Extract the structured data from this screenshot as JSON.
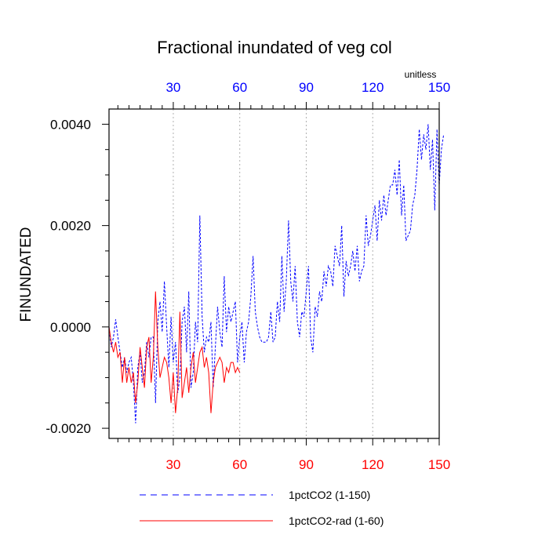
{
  "chart_data": {
    "type": "line",
    "title": "Fractional inundated of veg col",
    "units_label": "unitless",
    "ylabel": "FINUNDATED",
    "xlim": [
      1,
      150
    ],
    "ylim": [
      -0.0022,
      0.0043
    ],
    "x_ticks": [
      "30",
      "60",
      "90",
      "120",
      "150"
    ],
    "x_tick_values": [
      30,
      60,
      90,
      120,
      150
    ],
    "y_ticks": [
      "-0.0020",
      "0.0000",
      "0.0020",
      "0.0040"
    ],
    "y_tick_values": [
      -0.002,
      0.0,
      0.002,
      0.004
    ],
    "grid": "vertical dashed at major x ticks",
    "legend_position": "bottom",
    "colors": {
      "top_axis_labels": "#0000ff",
      "bottom_axis_labels": "#ff0000",
      "series_1": "#0000ff",
      "series_2": "#ff0000",
      "grid": "#b0b0b0"
    },
    "series": [
      {
        "name": "1pctCO2 (1-150)",
        "style": "dashed",
        "x_start": 1,
        "values": [
          0.0,
          -0.0004,
          -0.0002,
          0.00015,
          -0.0002,
          -0.0005,
          -0.0008,
          -0.0006,
          -0.0009,
          -0.0007,
          -0.0006,
          -0.0011,
          -0.0019,
          -0.0008,
          -0.0005,
          -0.0011,
          -0.0009,
          -0.0003,
          -0.0006,
          -0.0002,
          -0.0002,
          -0.0015,
          0.0001,
          0.0005,
          -0.0001,
          0.0009,
          0.0,
          -0.0008,
          0.0002,
          -0.0007,
          -0.0003,
          -0.0013,
          -0.001,
          0.0001,
          0.0004,
          -0.0005,
          0.0007,
          -0.0012,
          -0.0009,
          0.0001,
          -0.0003,
          0.0022,
          0.0002,
          -0.0005,
          -0.0002,
          -0.0003,
          0.0001,
          -0.0012,
          -0.0004,
          0.0004,
          -0.0001,
          -0.0004,
          0.001,
          -0.0001,
          0.0004,
          0.0001,
          0.0003,
          0.0005,
          -0.0007,
          -0.0002,
          0.0001,
          -0.0007,
          -0.0001,
          0.0001,
          0.0006,
          0.0014,
          0.0003,
          0.0,
          -0.0002,
          -0.0003,
          -0.0003,
          -0.0003,
          -0.0002,
          0.0003,
          -0.0003,
          -0.0002,
          0.0005,
          0.0001,
          0.0014,
          0.0003,
          0.0009,
          0.0021,
          0.0009,
          0.0005,
          0.0012,
          0.0001,
          -0.0002,
          0.0003,
          0.0002,
          0.0007,
          0.0012,
          -0.0002,
          -0.0005,
          0.0004,
          0.0002,
          0.0007,
          0.0005,
          0.0011,
          0.0008,
          0.0012,
          0.0011,
          0.0008,
          0.0016,
          0.0014,
          0.0012,
          0.002,
          0.0006,
          0.0013,
          0.001,
          0.0012,
          0.0015,
          0.0011,
          0.0016,
          0.0009,
          0.0011,
          0.0012,
          0.0022,
          0.0016,
          0.0018,
          0.0021,
          0.0024,
          0.0017,
          0.0025,
          0.0021,
          0.0026,
          0.0022,
          0.0025,
          0.0028,
          0.0028,
          0.0031,
          0.0026,
          0.0033,
          0.0022,
          0.0028,
          0.0017,
          0.0018,
          0.0019,
          0.0024,
          0.0026,
          0.0031,
          0.0039,
          0.0033,
          0.0038,
          0.0035,
          0.004,
          0.0031,
          0.0037,
          0.0023,
          0.0039,
          0.0028,
          0.0035,
          0.0038
        ]
      },
      {
        "name": "1pctCO2-rad (1-60)",
        "style": "solid",
        "x_start": 1,
        "values": [
          0.0,
          -0.0003,
          -0.0005,
          -0.0003,
          -0.0006,
          -0.0005,
          -0.0011,
          -0.0006,
          -0.0011,
          -0.0008,
          -0.0011,
          -0.0009,
          -0.0015,
          -0.0011,
          -0.0004,
          -0.0008,
          -0.0012,
          -0.0004,
          -0.0002,
          -0.0011,
          -0.0006,
          0.0007,
          -0.0004,
          -0.001,
          -0.0008,
          -0.0006,
          -0.0007,
          -0.001,
          -0.0015,
          -0.0009,
          -0.0017,
          -0.0012,
          0.0003,
          -0.0014,
          -0.0011,
          -0.0008,
          -0.0013,
          -0.0008,
          -0.0005,
          -0.0011,
          -0.0008,
          -0.0005,
          -0.0004,
          -0.0008,
          -0.0006,
          -0.0009,
          -0.0017,
          -0.0011,
          -0.0008,
          -0.0007,
          -0.0006,
          -0.0007,
          -0.0011,
          -0.0008,
          -0.0009,
          -0.0007,
          -0.0007,
          -0.0009,
          -0.0008,
          -0.0009
        ]
      }
    ]
  }
}
